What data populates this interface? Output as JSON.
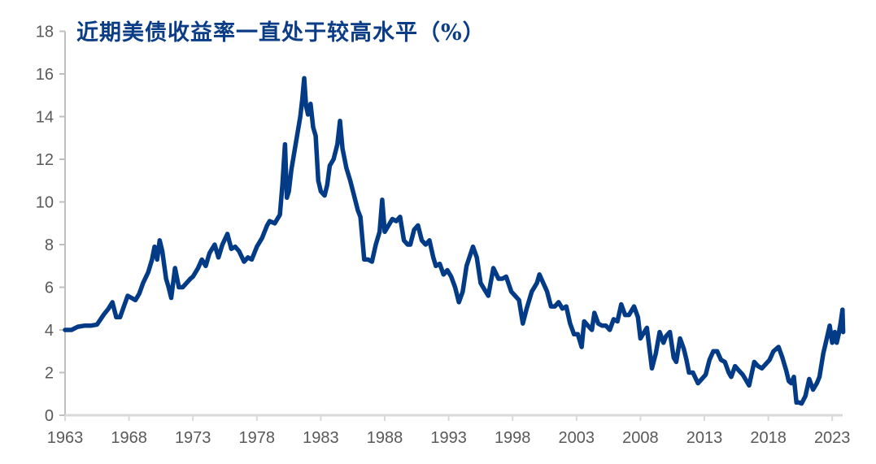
{
  "chart_data": {
    "type": "line",
    "title": "近期美债收益率一直处于较高水平（%）",
    "xlabel": "",
    "ylabel": "",
    "xlim": [
      1963,
      2023.85
    ],
    "ylim": [
      0,
      18
    ],
    "grid": false,
    "legend": "none",
    "line_color": "#033b86",
    "title_color": "#0b3d86",
    "xticks": [
      "1963",
      "1968",
      "1973",
      "1978",
      "1983",
      "1988",
      "1993",
      "1998",
      "2003",
      "2008",
      "2013",
      "2018",
      "2023"
    ],
    "yticks": [
      "0",
      "2",
      "4",
      "6",
      "8",
      "10",
      "12",
      "14",
      "16",
      "18"
    ],
    "series": [
      {
        "x": [
          1963.0,
          1963.5,
          1964.0,
          1964.5,
          1965.0,
          1965.5,
          1966.0,
          1966.4,
          1966.7,
          1967.0,
          1967.3,
          1967.6,
          1967.9,
          1968.2,
          1968.5,
          1968.8,
          1969.1,
          1969.5,
          1969.8,
          1970.0,
          1970.2,
          1970.4,
          1970.6,
          1970.9,
          1971.1,
          1971.3,
          1971.6,
          1971.9,
          1972.2,
          1972.5,
          1972.8,
          1973.0,
          1973.4,
          1973.7,
          1974.0,
          1974.3,
          1974.7,
          1975.0,
          1975.3,
          1975.7,
          1976.0,
          1976.3,
          1976.6,
          1977.0,
          1977.3,
          1977.6,
          1978.0,
          1978.4,
          1978.8,
          1979.0,
          1979.4,
          1979.8,
          1980.0,
          1980.2,
          1980.35,
          1980.5,
          1980.7,
          1981.0,
          1981.2,
          1981.4,
          1981.55,
          1981.7,
          1981.85,
          1982.0,
          1982.2,
          1982.4,
          1982.6,
          1982.8,
          1983.0,
          1983.3,
          1983.5,
          1983.7,
          1984.0,
          1984.3,
          1984.5,
          1984.7,
          1985.0,
          1985.3,
          1985.6,
          1985.9,
          1986.1,
          1986.4,
          1986.7,
          1987.0,
          1987.3,
          1987.6,
          1987.8,
          1988.0,
          1988.3,
          1988.6,
          1988.9,
          1989.2,
          1989.5,
          1989.8,
          1990.0,
          1990.3,
          1990.6,
          1990.9,
          1991.2,
          1991.5,
          1991.8,
          1992.0,
          1992.3,
          1992.6,
          1992.9,
          1993.2,
          1993.5,
          1993.8,
          1994.1,
          1994.4,
          1994.9,
          1995.2,
          1995.5,
          1995.9,
          1996.1,
          1996.5,
          1996.9,
          1997.2,
          1997.5,
          1997.9,
          1998.2,
          1998.5,
          1998.8,
          1999.1,
          1999.5,
          1999.9,
          2000.1,
          2000.4,
          2000.7,
          2001.0,
          2001.3,
          2001.6,
          2001.9,
          2002.2,
          2002.5,
          2002.8,
          2003.1,
          2003.4,
          2003.6,
          2003.9,
          2004.2,
          2004.4,
          2004.7,
          2005.0,
          2005.3,
          2005.6,
          2005.9,
          2006.2,
          2006.5,
          2006.8,
          2007.1,
          2007.5,
          2007.8,
          2008.0,
          2008.3,
          2008.5,
          2008.9,
          2009.2,
          2009.5,
          2009.8,
          2010.0,
          2010.3,
          2010.6,
          2010.8,
          2011.1,
          2011.4,
          2011.6,
          2011.8,
          2012.1,
          2012.5,
          2012.8,
          2013.1,
          2013.4,
          2013.7,
          2014.0,
          2014.3,
          2014.6,
          2014.9,
          2015.1,
          2015.4,
          2015.7,
          2016.0,
          2016.3,
          2016.5,
          2016.9,
          2017.2,
          2017.5,
          2017.8,
          2018.1,
          2018.4,
          2018.8,
          2019.1,
          2019.4,
          2019.6,
          2019.8,
          2020.0,
          2020.2,
          2020.4,
          2020.6,
          2020.9,
          2021.2,
          2021.5,
          2021.8,
          2022.0,
          2022.3,
          2022.5,
          2022.8,
          2023.0,
          2023.2,
          2023.35,
          2023.5,
          2023.65,
          2023.8,
          2023.85
        ],
        "y": [
          4.0,
          4.0,
          4.15,
          4.2,
          4.2,
          4.25,
          4.7,
          5.0,
          5.3,
          4.6,
          4.6,
          5.1,
          5.6,
          5.5,
          5.4,
          5.7,
          6.2,
          6.7,
          7.3,
          7.9,
          7.3,
          8.2,
          7.7,
          6.4,
          6.0,
          5.5,
          6.9,
          6.0,
          6.0,
          6.2,
          6.4,
          6.5,
          6.9,
          7.3,
          7.0,
          7.6,
          8.0,
          7.4,
          8.0,
          8.5,
          7.8,
          7.9,
          7.7,
          7.2,
          7.4,
          7.3,
          7.9,
          8.3,
          8.9,
          9.1,
          9.0,
          9.4,
          10.8,
          12.7,
          10.2,
          10.5,
          11.5,
          12.6,
          13.3,
          14.0,
          14.8,
          15.8,
          14.5,
          14.1,
          14.6,
          13.5,
          13.1,
          11.0,
          10.5,
          10.3,
          10.8,
          11.7,
          12.0,
          12.7,
          13.8,
          12.5,
          11.6,
          11.0,
          10.3,
          9.6,
          9.3,
          7.3,
          7.3,
          7.2,
          8.0,
          8.6,
          10.1,
          8.6,
          8.9,
          9.2,
          9.1,
          9.3,
          8.2,
          8.0,
          8.0,
          8.7,
          8.9,
          8.2,
          8.0,
          8.2,
          7.4,
          7.0,
          7.1,
          6.6,
          6.8,
          6.5,
          6.0,
          5.3,
          5.8,
          7.0,
          7.9,
          7.4,
          6.2,
          5.8,
          5.6,
          6.9,
          6.4,
          6.4,
          6.5,
          5.8,
          5.6,
          5.4,
          4.3,
          5.0,
          5.8,
          6.2,
          6.6,
          6.2,
          5.8,
          5.1,
          5.1,
          5.3,
          5.0,
          5.1,
          4.3,
          3.8,
          3.8,
          3.2,
          4.4,
          4.2,
          4.0,
          4.8,
          4.3,
          4.2,
          4.2,
          4.0,
          4.5,
          4.4,
          5.2,
          4.7,
          4.7,
          5.1,
          4.6,
          3.6,
          3.9,
          4.1,
          2.2,
          2.9,
          3.9,
          3.4,
          3.7,
          3.9,
          2.7,
          2.5,
          3.6,
          3.1,
          2.6,
          2.0,
          2.0,
          1.5,
          1.7,
          1.9,
          2.6,
          3.0,
          3.0,
          2.6,
          2.5,
          2.0,
          1.8,
          2.3,
          2.1,
          1.9,
          1.6,
          1.4,
          2.5,
          2.3,
          2.2,
          2.4,
          2.6,
          3.0,
          3.2,
          2.7,
          2.1,
          1.6,
          1.5,
          1.8,
          0.6,
          0.6,
          0.55,
          0.9,
          1.7,
          1.2,
          1.5,
          1.8,
          2.9,
          3.4,
          4.2,
          3.4,
          3.9,
          3.4,
          3.8,
          4.3,
          4.95,
          3.9
        ]
      }
    ]
  }
}
